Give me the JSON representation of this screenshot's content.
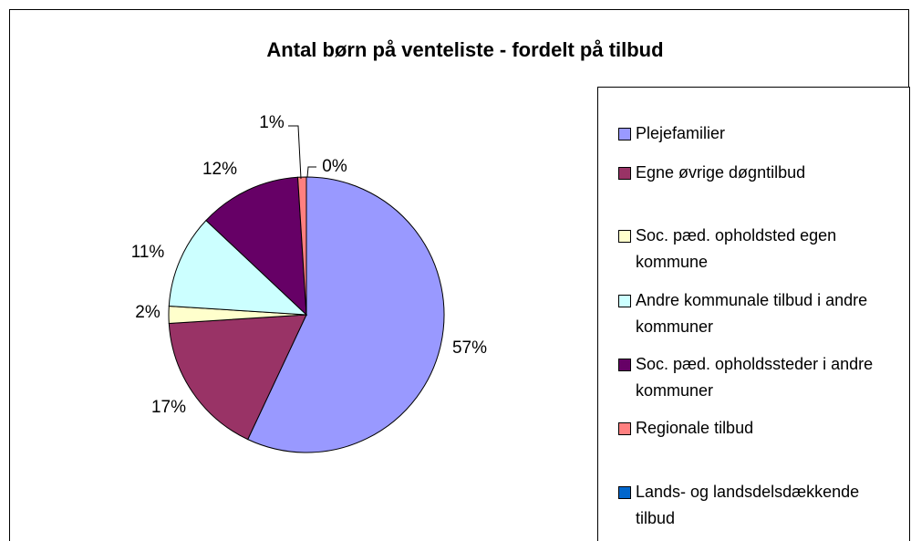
{
  "chart_data": {
    "type": "pie",
    "title": "Antal børn på venteliste - fordelt på tilbud",
    "categories": [
      "Plejefamilier",
      "Egne øvrige døgntilbud",
      "Soc. pæd. opholdsted egen kommune",
      "Andre kommunale tilbud i andre kommuner",
      "Soc. pæd. opholdssteder i andre kommuner",
      "Regionale tilbud",
      "Lands- og landsdelsdækkende tilbud"
    ],
    "values": [
      57,
      17,
      2,
      11,
      12,
      1,
      0
    ],
    "value_labels": [
      "57%",
      "17%",
      "2%",
      "11%",
      "12%",
      "1%",
      "0%"
    ],
    "colors": [
      "#9999ff",
      "#993366",
      "#ffffcc",
      "#ccffff",
      "#660066",
      "#ff8080",
      "#0066cc"
    ],
    "legend": "right"
  }
}
